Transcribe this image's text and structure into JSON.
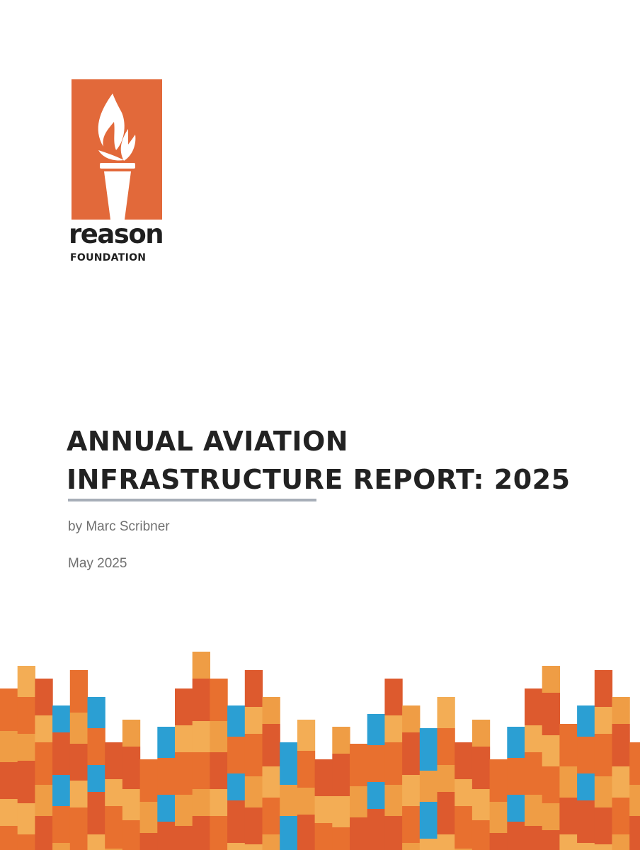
{
  "logo": {
    "icon": "torch-icon",
    "word": "reason",
    "sub": "FOUNDATION",
    "color": "#e2693a"
  },
  "title_lines": [
    "ANNUAL AVIATION",
    "INFRASTRUCTURE REPORT: 2025"
  ],
  "byline": "by Marc Scribner",
  "date": "May 2025",
  "palette": {
    "orange": "#e8702f",
    "light_orange": "#ef9d45",
    "red_orange": "#dd5a2e",
    "pale_orange": "#f3ad55",
    "blue": "#2b9fd3",
    "rule": "#a7aeb8"
  }
}
